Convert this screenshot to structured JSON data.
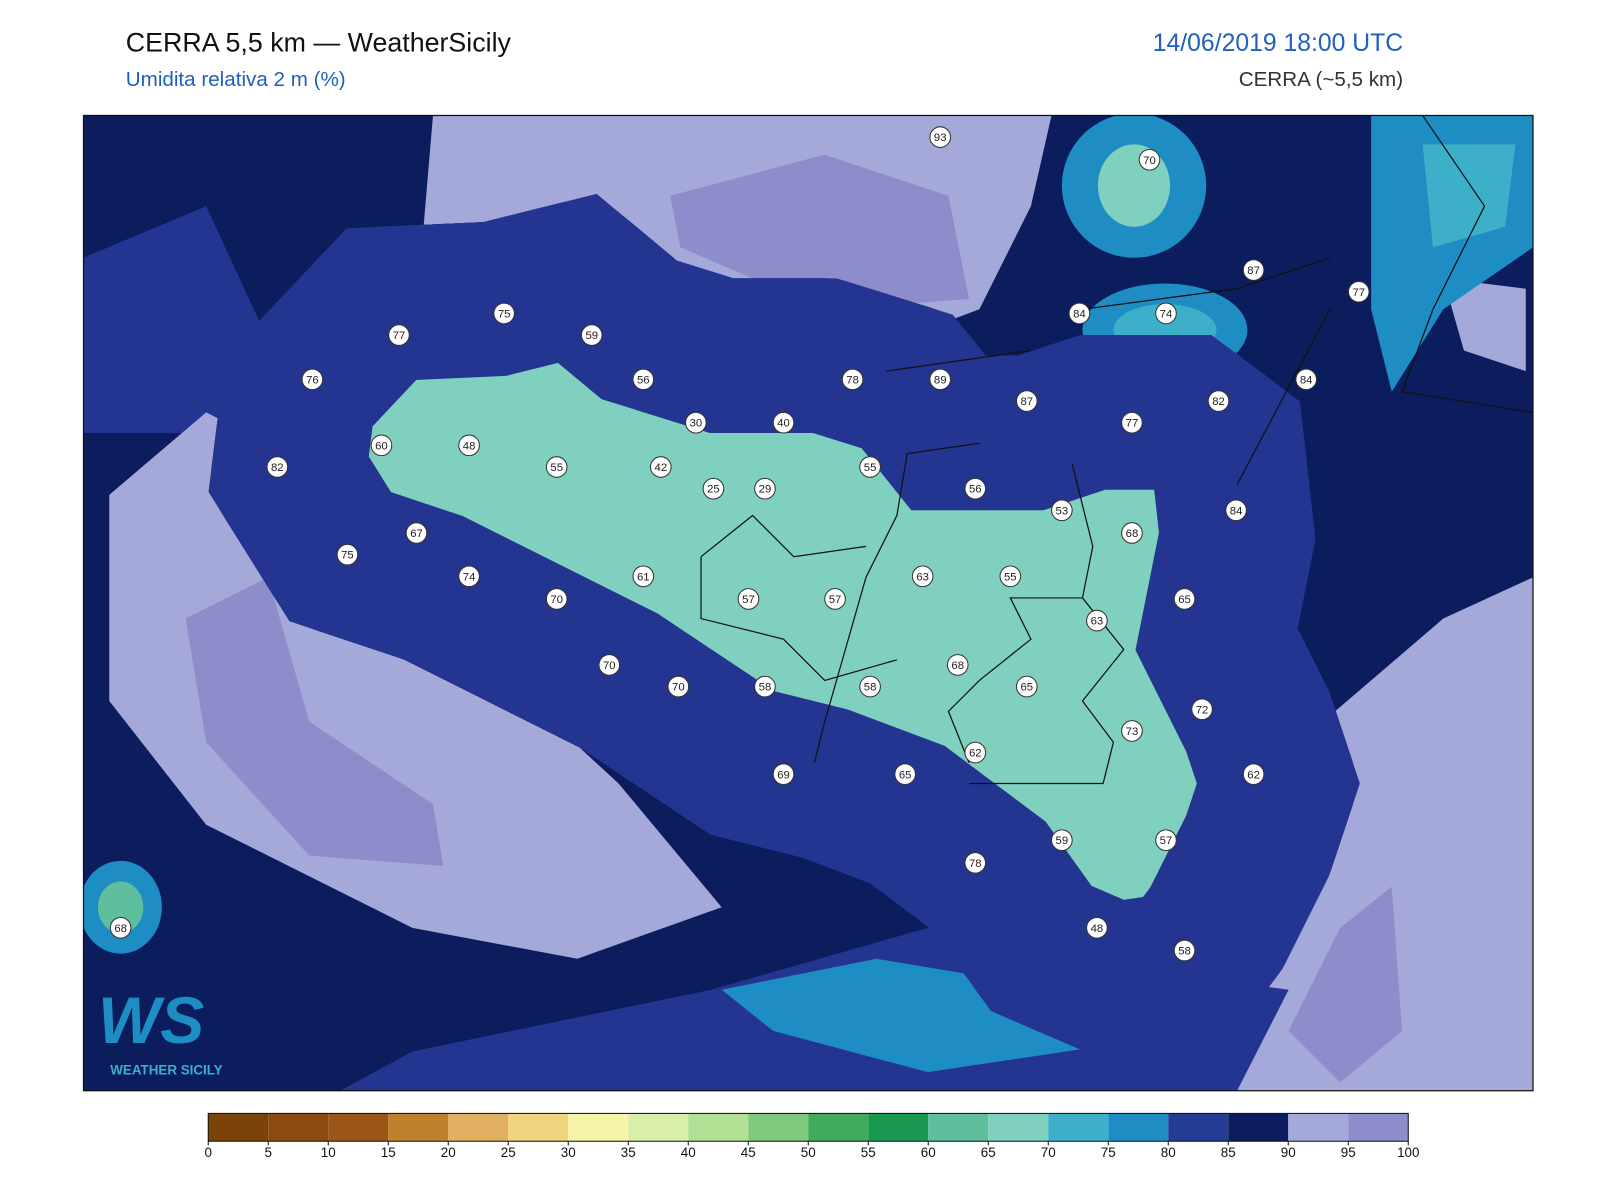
{
  "header": {
    "title": "CERRA 5,5 km — WeatherSicily",
    "subtitle": "Umidita relativa 2 m (%)",
    "date": "14/06/2019 18:00 UTC",
    "model": "CERRA (~5,5 km)"
  },
  "stations": {
    "values": [
      93,
      70,
      87,
      77,
      75,
      59,
      77,
      84,
      74,
      76,
      56,
      78,
      89,
      87,
      82,
      84,
      30,
      40,
      77,
      60,
      48,
      82,
      55,
      42,
      55,
      25,
      29,
      56,
      53,
      84,
      67,
      68,
      75,
      74,
      70,
      61,
      63,
      55,
      57,
      57,
      65,
      63,
      70,
      68,
      70,
      58,
      58,
      65,
      72,
      73,
      62,
      69,
      65,
      62,
      59,
      57,
      78,
      48,
      58,
      68
    ]
  },
  "colorbar": {
    "ticks": [
      0,
      5,
      10,
      15,
      20,
      25,
      30,
      35,
      40,
      45,
      50,
      55,
      60,
      65,
      70,
      75,
      80,
      85,
      90,
      95,
      100
    ],
    "colors": [
      "#7a4408",
      "#8b4b10",
      "#9a5517",
      "#c0812f",
      "#e0b061",
      "#f0d47e",
      "#f7f3a7",
      "#d9eea8",
      "#b2e094",
      "#7fc97c",
      "#40ab5c",
      "#1a9850",
      "#5ebf9e",
      "#80d0c0",
      "#3cb0c8",
      "#1d8dc4",
      "#243c94",
      "#0b1d5c",
      "#a5a9d9",
      "#8e8dcb"
    ]
  },
  "logo": {
    "mark": "WS",
    "text": "WEATHER SICILY"
  }
}
